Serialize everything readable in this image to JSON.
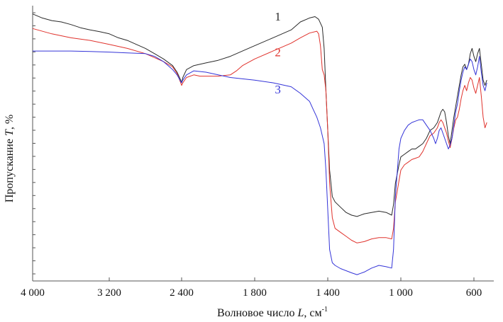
{
  "chart_data": {
    "type": "line",
    "xlabel": "Волновое число L, см⁻¹",
    "xlabel_parts": {
      "text": "Волновое число ",
      "var": "L",
      "unit": ", см",
      "sup": "-1"
    },
    "ylabel": "Пропускание T, %",
    "ylabel_parts": {
      "text": "Пропускание ",
      "var": "T",
      "unit": ", %"
    },
    "x_ticks": [
      {
        "value": 4000,
        "label": "4 000"
      },
      {
        "value": 3200,
        "label": "3 200"
      },
      {
        "value": 2400,
        "label": "2 400"
      },
      {
        "value": 1800,
        "label": "1 800"
      },
      {
        "value": 1400,
        "label": "1 400"
      },
      {
        "value": 1000,
        "label": "1 000"
      },
      {
        "value": 600,
        "label": "600"
      }
    ],
    "x_axis_note": "piecewise scale: 800 cm-1 per division above 2400, 400-600 cm-1 per division below",
    "x_range": [
      4000,
      500
    ],
    "y_range": [
      0,
      100
    ],
    "y_minor_ticks": 20,
    "grid": false,
    "series": [
      {
        "name": "1",
        "color": "#2a2a2a",
        "points": [
          [
            4000,
            99
          ],
          [
            3900,
            97.5
          ],
          [
            3800,
            96.5
          ],
          [
            3700,
            96
          ],
          [
            3600,
            95
          ],
          [
            3500,
            93.8
          ],
          [
            3400,
            93
          ],
          [
            3300,
            92.3
          ],
          [
            3200,
            91.5
          ],
          [
            3100,
            90
          ],
          [
            3000,
            89
          ],
          [
            2900,
            87.5
          ],
          [
            2800,
            86
          ],
          [
            2700,
            84
          ],
          [
            2600,
            82
          ],
          [
            2500,
            79.5
          ],
          [
            2450,
            77
          ],
          [
            2410,
            74
          ],
          [
            2400,
            73
          ],
          [
            2390,
            75
          ],
          [
            2360,
            78
          ],
          [
            2300,
            79.5
          ],
          [
            2200,
            80.5
          ],
          [
            2100,
            81.5
          ],
          [
            2000,
            83
          ],
          [
            1900,
            85
          ],
          [
            1800,
            87
          ],
          [
            1700,
            90
          ],
          [
            1600,
            93
          ],
          [
            1550,
            96
          ],
          [
            1500,
            97.5
          ],
          [
            1470,
            98
          ],
          [
            1450,
            97
          ],
          [
            1430,
            94
          ],
          [
            1420,
            86
          ],
          [
            1410,
            70
          ],
          [
            1400,
            55
          ],
          [
            1390,
            40
          ],
          [
            1375,
            30
          ],
          [
            1360,
            28
          ],
          [
            1330,
            26
          ],
          [
            1300,
            24
          ],
          [
            1270,
            23
          ],
          [
            1240,
            22.5
          ],
          [
            1200,
            23.5
          ],
          [
            1160,
            24
          ],
          [
            1120,
            24.5
          ],
          [
            1080,
            24
          ],
          [
            1050,
            23
          ],
          [
            1040,
            27
          ],
          [
            1030,
            35
          ],
          [
            1010,
            42
          ],
          [
            1000,
            45
          ],
          [
            980,
            46
          ],
          [
            960,
            47
          ],
          [
            940,
            48
          ],
          [
            920,
            48
          ],
          [
            900,
            49
          ],
          [
            880,
            50
          ],
          [
            860,
            52
          ],
          [
            840,
            55
          ],
          [
            820,
            56
          ],
          [
            800,
            58
          ],
          [
            790,
            60
          ],
          [
            780,
            62
          ],
          [
            770,
            63
          ],
          [
            760,
            62
          ],
          [
            750,
            58
          ],
          [
            740,
            53
          ],
          [
            730,
            50
          ],
          [
            720,
            55
          ],
          [
            710,
            60
          ],
          [
            700,
            64
          ],
          [
            690,
            68
          ],
          [
            680,
            72
          ],
          [
            670,
            76
          ],
          [
            660,
            79
          ],
          [
            650,
            80
          ],
          [
            640,
            78
          ],
          [
            630,
            80
          ],
          [
            620,
            84
          ],
          [
            610,
            86
          ],
          [
            600,
            83
          ],
          [
            590,
            81
          ],
          [
            580,
            84
          ],
          [
            570,
            86
          ],
          [
            560,
            80
          ],
          [
            550,
            74
          ],
          [
            540,
            72
          ],
          [
            530,
            74
          ]
        ]
      },
      {
        "name": "2",
        "color": "#e0322c",
        "points": [
          [
            4000,
            93.5
          ],
          [
            3800,
            91.5
          ],
          [
            3600,
            90
          ],
          [
            3400,
            89
          ],
          [
            3200,
            87.5
          ],
          [
            3000,
            86
          ],
          [
            2800,
            84
          ],
          [
            2600,
            81
          ],
          [
            2500,
            79
          ],
          [
            2450,
            76.5
          ],
          [
            2410,
            73
          ],
          [
            2400,
            72
          ],
          [
            2390,
            73
          ],
          [
            2360,
            75
          ],
          [
            2300,
            76
          ],
          [
            2250,
            75.5
          ],
          [
            2200,
            75.5
          ],
          [
            2100,
            75.5
          ],
          [
            2000,
            76
          ],
          [
            1950,
            77.5
          ],
          [
            1900,
            79.5
          ],
          [
            1800,
            82
          ],
          [
            1700,
            85
          ],
          [
            1600,
            88
          ],
          [
            1550,
            90
          ],
          [
            1500,
            91.8
          ],
          [
            1460,
            92.5
          ],
          [
            1450,
            91.5
          ],
          [
            1440,
            87
          ],
          [
            1430,
            78
          ],
          [
            1420,
            76
          ],
          [
            1410,
            70
          ],
          [
            1400,
            55
          ],
          [
            1390,
            35
          ],
          [
            1375,
            22
          ],
          [
            1360,
            18
          ],
          [
            1330,
            16.5
          ],
          [
            1300,
            15
          ],
          [
            1270,
            13.5
          ],
          [
            1240,
            12.5
          ],
          [
            1200,
            13
          ],
          [
            1160,
            14
          ],
          [
            1120,
            14.5
          ],
          [
            1080,
            14.5
          ],
          [
            1050,
            14
          ],
          [
            1040,
            18
          ],
          [
            1030,
            28
          ],
          [
            1010,
            36
          ],
          [
            1000,
            40
          ],
          [
            980,
            42
          ],
          [
            960,
            43
          ],
          [
            940,
            44
          ],
          [
            920,
            44.5
          ],
          [
            900,
            45
          ],
          [
            880,
            47
          ],
          [
            860,
            50
          ],
          [
            840,
            53
          ],
          [
            820,
            54
          ],
          [
            800,
            56
          ],
          [
            790,
            58
          ],
          [
            780,
            59
          ],
          [
            770,
            58
          ],
          [
            760,
            56
          ],
          [
            750,
            54
          ],
          [
            740,
            51
          ],
          [
            730,
            48.5
          ],
          [
            720,
            52
          ],
          [
            710,
            56
          ],
          [
            700,
            59
          ],
          [
            690,
            60
          ],
          [
            680,
            63
          ],
          [
            670,
            67
          ],
          [
            660,
            70
          ],
          [
            650,
            72
          ],
          [
            640,
            70
          ],
          [
            630,
            73
          ],
          [
            620,
            75
          ],
          [
            610,
            74
          ],
          [
            600,
            71
          ],
          [
            590,
            69
          ],
          [
            580,
            72
          ],
          [
            570,
            75
          ],
          [
            560,
            68
          ],
          [
            550,
            60
          ],
          [
            540,
            56
          ],
          [
            530,
            58
          ]
        ]
      },
      {
        "name": "3",
        "color": "#3434d8",
        "points": [
          [
            4000,
            85
          ],
          [
            3800,
            85
          ],
          [
            3600,
            85
          ],
          [
            3400,
            84.8
          ],
          [
            3200,
            84.6
          ],
          [
            3000,
            84.3
          ],
          [
            2800,
            84
          ],
          [
            2700,
            83
          ],
          [
            2600,
            81
          ],
          [
            2500,
            78
          ],
          [
            2450,
            76
          ],
          [
            2410,
            73.5
          ],
          [
            2400,
            73
          ],
          [
            2390,
            74
          ],
          [
            2360,
            76
          ],
          [
            2300,
            77.5
          ],
          [
            2200,
            77
          ],
          [
            2100,
            76
          ],
          [
            2000,
            75
          ],
          [
            1900,
            74.5
          ],
          [
            1800,
            74
          ],
          [
            1700,
            73
          ],
          [
            1600,
            71.5
          ],
          [
            1550,
            69
          ],
          [
            1500,
            66
          ],
          [
            1480,
            63
          ],
          [
            1460,
            60
          ],
          [
            1440,
            56
          ],
          [
            1420,
            50
          ],
          [
            1410,
            40
          ],
          [
            1400,
            25
          ],
          [
            1390,
            10
          ],
          [
            1375,
            5
          ],
          [
            1360,
            4
          ],
          [
            1330,
            2.8
          ],
          [
            1300,
            2
          ],
          [
            1270,
            1.2
          ],
          [
            1240,
            0.5
          ],
          [
            1200,
            1.5
          ],
          [
            1160,
            3
          ],
          [
            1120,
            4
          ],
          [
            1080,
            3.5
          ],
          [
            1050,
            3
          ],
          [
            1040,
            10
          ],
          [
            1030,
            30
          ],
          [
            1010,
            48
          ],
          [
            1000,
            52
          ],
          [
            980,
            55
          ],
          [
            960,
            57
          ],
          [
            940,
            58
          ],
          [
            920,
            58.5
          ],
          [
            900,
            59
          ],
          [
            880,
            59
          ],
          [
            860,
            57
          ],
          [
            840,
            55
          ],
          [
            820,
            52
          ],
          [
            810,
            50
          ],
          [
            800,
            52
          ],
          [
            790,
            55
          ],
          [
            780,
            56
          ],
          [
            770,
            54
          ],
          [
            760,
            52
          ],
          [
            750,
            50
          ],
          [
            740,
            48
          ],
          [
            730,
            49.5
          ],
          [
            720,
            52
          ],
          [
            710,
            57
          ],
          [
            700,
            62
          ],
          [
            690,
            65
          ],
          [
            680,
            70
          ],
          [
            670,
            74
          ],
          [
            660,
            77
          ],
          [
            650,
            79
          ],
          [
            640,
            78
          ],
          [
            630,
            80
          ],
          [
            620,
            82
          ],
          [
            610,
            81
          ],
          [
            600,
            78
          ],
          [
            590,
            76
          ],
          [
            580,
            79
          ],
          [
            570,
            83
          ],
          [
            560,
            77
          ],
          [
            550,
            72
          ],
          [
            540,
            70
          ],
          [
            530,
            73
          ]
        ]
      }
    ],
    "curve_labels": [
      {
        "series": "1",
        "text": "1",
        "x": 1690,
        "y": 96.5
      },
      {
        "series": "2",
        "text": "2",
        "x": 1690,
        "y": 83
      },
      {
        "series": "3",
        "text": "3",
        "x": 1690,
        "y": 69
      }
    ]
  }
}
